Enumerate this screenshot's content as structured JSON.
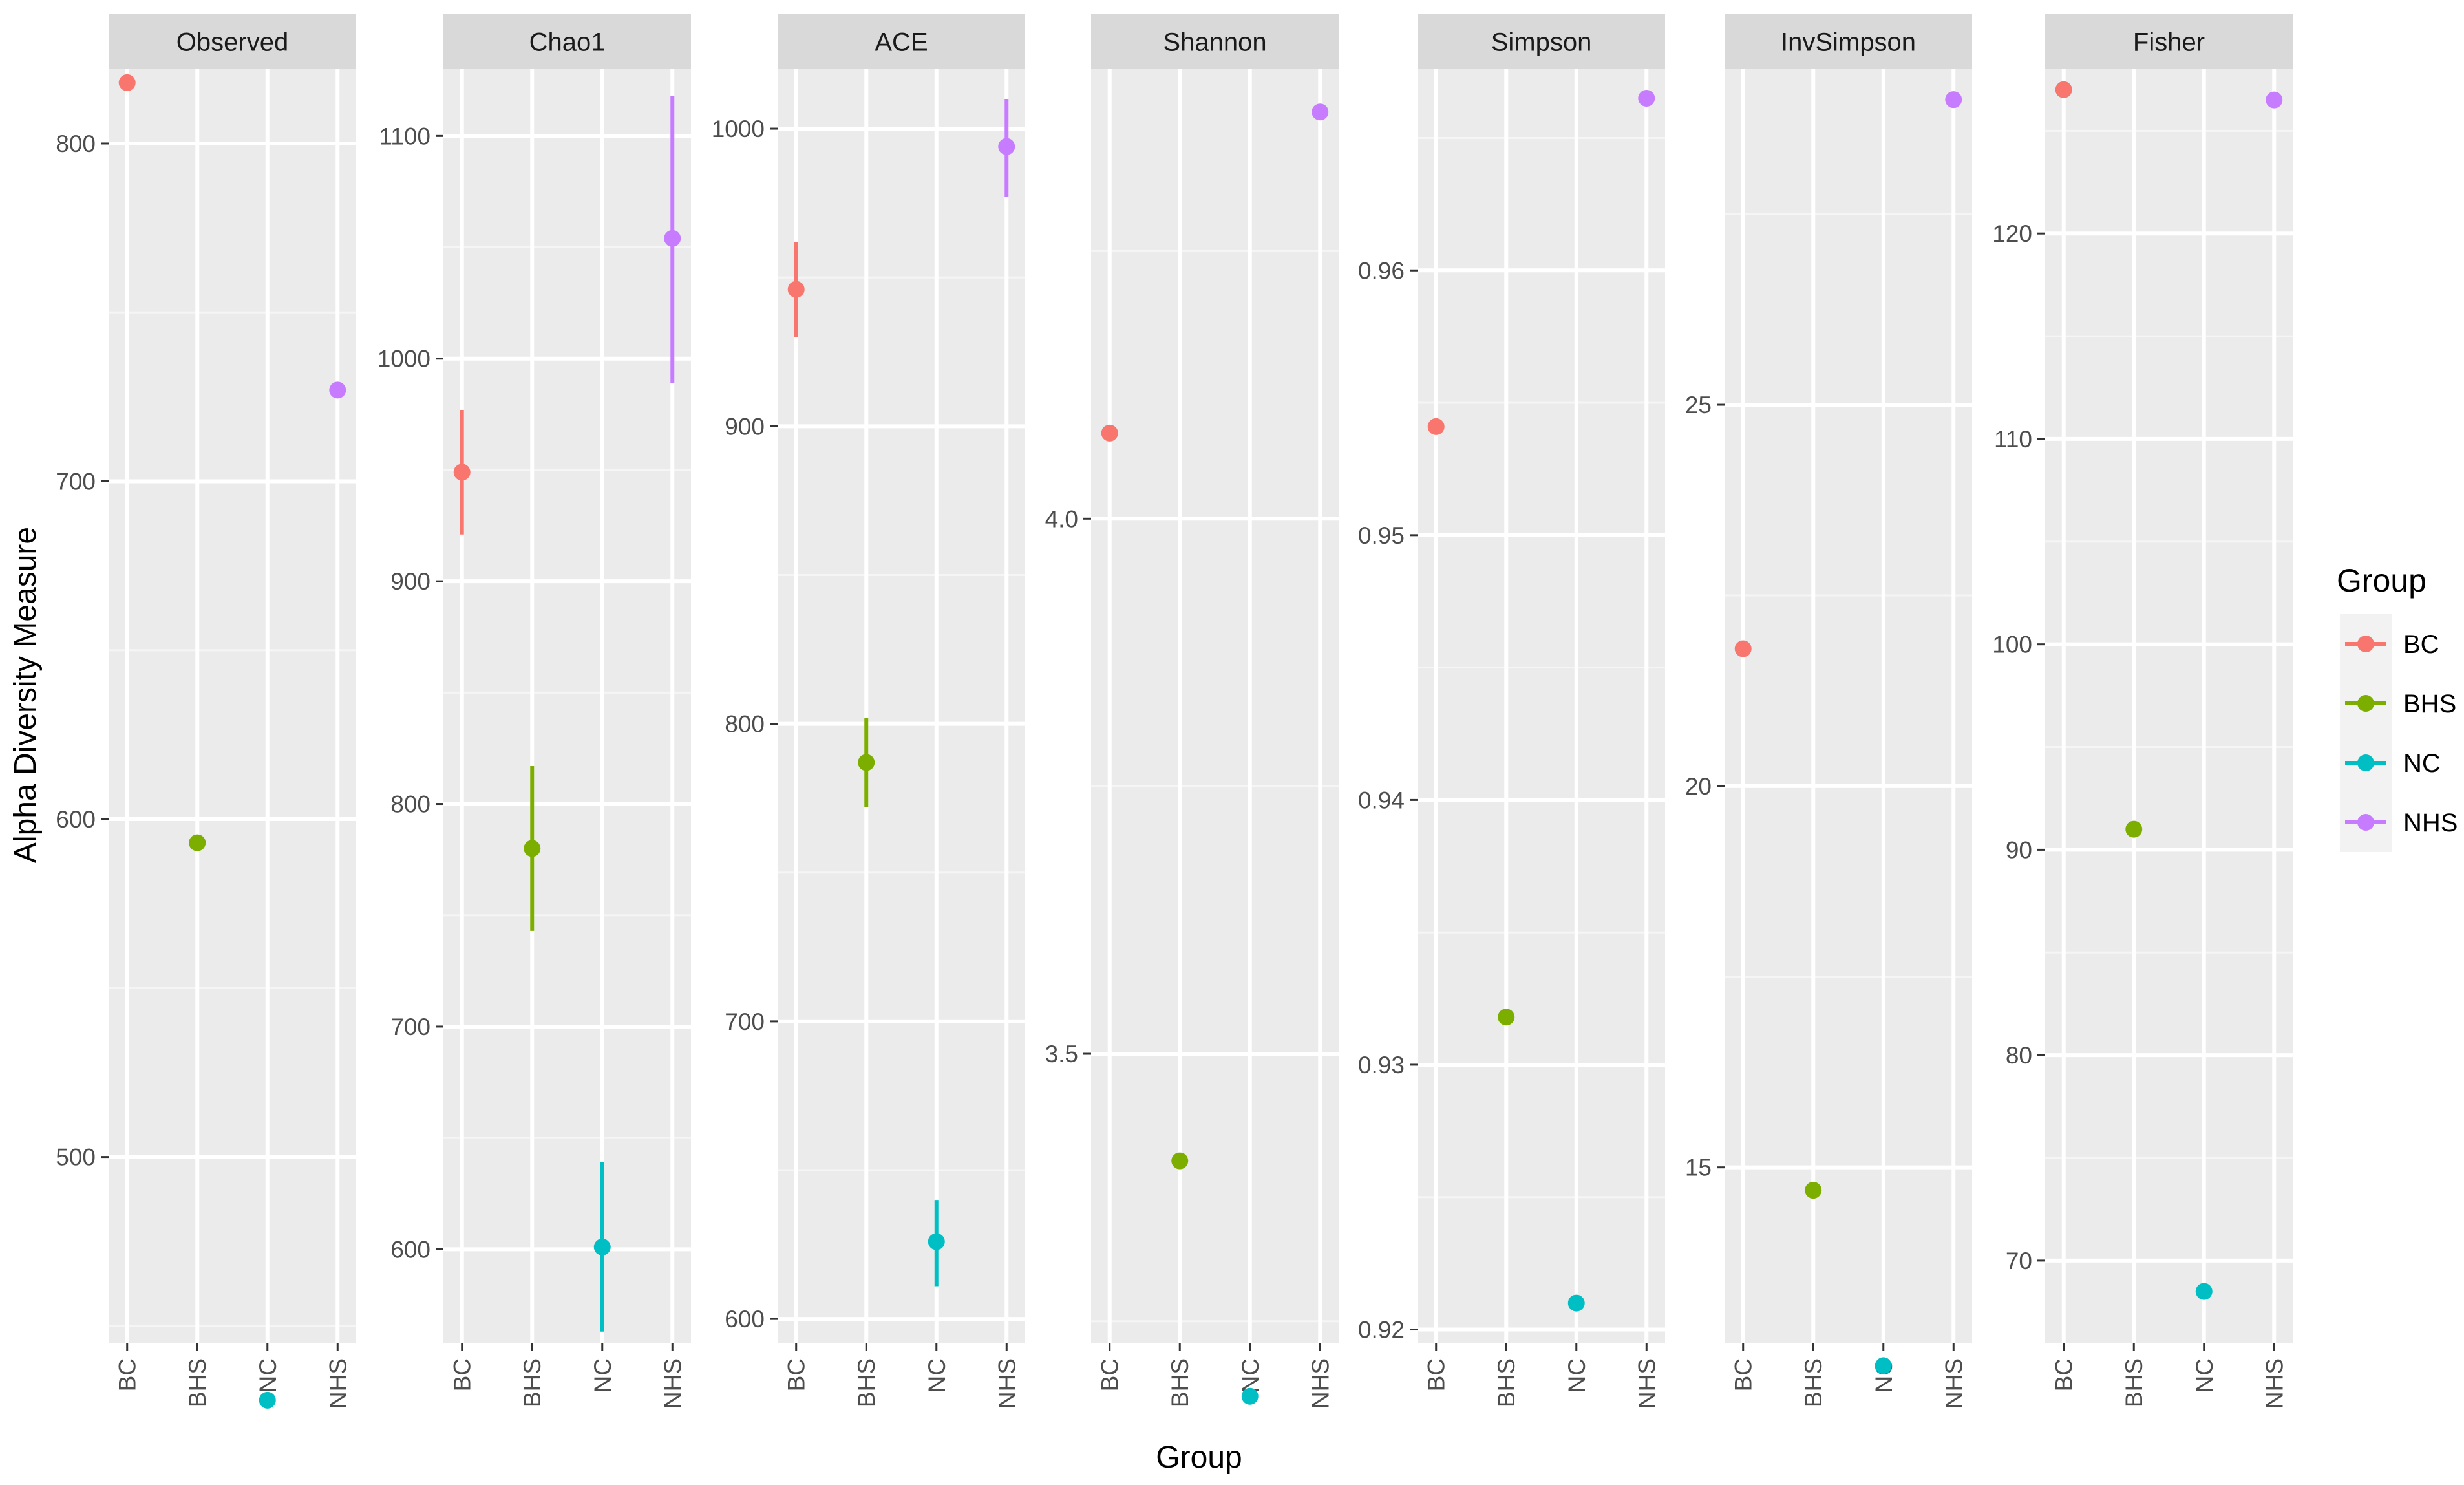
{
  "chart_data": {
    "type": "scatter",
    "ylabel": "Alpha Diversity Measure",
    "xlabel": "Group",
    "categories": [
      "BC",
      "BHS",
      "NC",
      "NHS"
    ],
    "legend": {
      "title": "Group",
      "position": "right",
      "entries": [
        {
          "label": "BC",
          "color": "#F8766D"
        },
        {
          "label": "BHS",
          "color": "#7CAE00"
        },
        {
          "label": "NC",
          "color": "#00BFC4"
        },
        {
          "label": "NHS",
          "color": "#C77CFF"
        }
      ]
    },
    "panels": [
      {
        "title": "Observed",
        "ylim": [
          445,
          822
        ],
        "ticks": [
          500,
          600,
          700,
          800
        ],
        "tick_labels": [
          "500",
          "600",
          "700",
          "800"
        ],
        "points": [
          {
            "group": "BC",
            "y": 818
          },
          {
            "group": "BHS",
            "y": 593
          },
          {
            "group": "NC",
            "y": 428
          },
          {
            "group": "NHS",
            "y": 727
          }
        ]
      },
      {
        "title": "Chao1",
        "ylim": [
          558,
          1130
        ],
        "ticks": [
          600,
          700,
          800,
          900,
          1000,
          1100
        ],
        "tick_labels": [
          "600",
          "700",
          "800",
          "900",
          "1000",
          "1100"
        ],
        "points": [
          {
            "group": "BC",
            "y": 949,
            "ymin": 921,
            "ymax": 977
          },
          {
            "group": "BHS",
            "y": 780,
            "ymin": 743,
            "ymax": 817
          },
          {
            "group": "NC",
            "y": 601,
            "ymin": 563,
            "ymax": 639
          },
          {
            "group": "NHS",
            "y": 1054,
            "ymin": 989,
            "ymax": 1118
          }
        ]
      },
      {
        "title": "ACE",
        "ylim": [
          592,
          1020
        ],
        "ticks": [
          600,
          700,
          800,
          900,
          1000
        ],
        "tick_labels": [
          "600",
          "700",
          "800",
          "900",
          "1000"
        ],
        "points": [
          {
            "group": "BC",
            "y": 946,
            "ymin": 930,
            "ymax": 962
          },
          {
            "group": "BHS",
            "y": 787,
            "ymin": 772,
            "ymax": 802
          },
          {
            "group": "NC",
            "y": 626,
            "ymin": 611,
            "ymax": 640
          },
          {
            "group": "NHS",
            "y": 994,
            "ymin": 977,
            "ymax": 1010
          }
        ]
      },
      {
        "title": "Shannon",
        "ylim": [
          3.23,
          4.42
        ],
        "ticks": [
          3.5,
          4.0
        ],
        "tick_labels": [
          "3.5",
          "4.0"
        ],
        "points": [
          {
            "group": "BC",
            "y": 4.08
          },
          {
            "group": "BHS",
            "y": 3.4
          },
          {
            "group": "NC",
            "y": 3.18
          },
          {
            "group": "NHS",
            "y": 4.38
          }
        ]
      },
      {
        "title": "Simpson",
        "ylim": [
          0.9195,
          0.9676
        ],
        "ticks": [
          0.92,
          0.93,
          0.94,
          0.95,
          0.96
        ],
        "tick_labels": [
          "0.92",
          "0.93",
          "0.94",
          "0.95",
          "0.96"
        ],
        "points": [
          {
            "group": "BC",
            "y": 0.9541
          },
          {
            "group": "BHS",
            "y": 0.9318
          },
          {
            "group": "NC",
            "y": 0.921
          },
          {
            "group": "NHS",
            "y": 0.9665
          }
        ]
      },
      {
        "title": "InvSimpson",
        "ylim": [
          12.7,
          29.4
        ],
        "ticks": [
          15,
          20,
          25
        ],
        "tick_labels": [
          "15",
          "20",
          "25"
        ],
        "points": [
          {
            "group": "BC",
            "y": 21.8
          },
          {
            "group": "BHS",
            "y": 14.7
          },
          {
            "group": "NC",
            "y": 12.4
          },
          {
            "group": "NHS",
            "y": 29.0
          }
        ]
      },
      {
        "title": "Fisher",
        "ylim": [
          66,
          128
        ],
        "ticks": [
          70,
          80,
          90,
          100,
          110,
          120
        ],
        "tick_labels": [
          "70",
          "80",
          "90",
          "100",
          "110",
          "120"
        ],
        "points": [
          {
            "group": "BC",
            "y": 127
          },
          {
            "group": "BHS",
            "y": 91
          },
          {
            "group": "NC",
            "y": 68.5
          },
          {
            "group": "NHS",
            "y": 126.5
          }
        ]
      }
    ]
  }
}
